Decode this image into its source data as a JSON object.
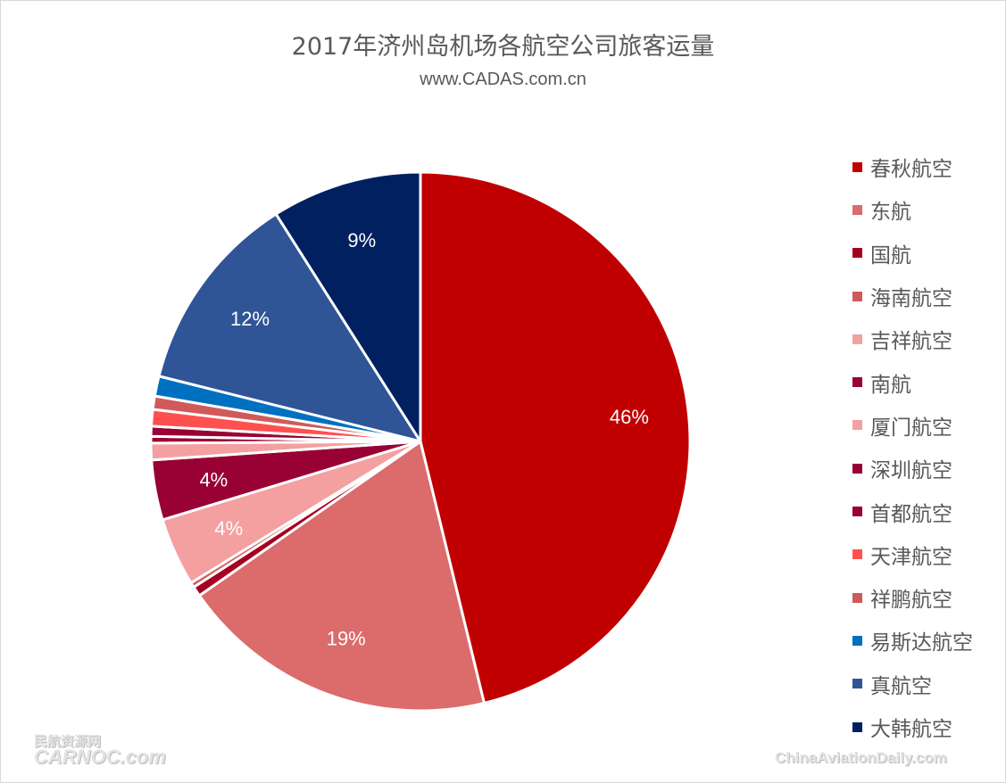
{
  "chart_data": {
    "type": "pie",
    "title": "2017年济州岛机场各航空公司旅客运量",
    "subtitle": "www.CADAS.com.cn",
    "legend_position": "right",
    "start_angle": "12 o'clock, clockwise",
    "slices": [
      {
        "name": "春秋航空",
        "value": 46.2,
        "label": "46%",
        "color": "#C00000"
      },
      {
        "name": "东航",
        "value": 19.1,
        "label": "19%",
        "color": "#DC6B6B"
      },
      {
        "name": "国航",
        "value": 0.6,
        "label": "",
        "color": "#A50021"
      },
      {
        "name": "海南航空",
        "value": 0.3,
        "label": "",
        "color": "#D05A5A"
      },
      {
        "name": "吉祥航空",
        "value": 4.1,
        "label": "4%",
        "color": "#F4A0A0"
      },
      {
        "name": "南航",
        "value": 3.6,
        "label": "4%",
        "color": "#990033"
      },
      {
        "name": "厦门航空",
        "value": 1.0,
        "label": "",
        "color": "#F4A0A0"
      },
      {
        "name": "深圳航空",
        "value": 0.4,
        "label": "",
        "color": "#990033"
      },
      {
        "name": "首都航空",
        "value": 0.6,
        "label": "",
        "color": "#990033"
      },
      {
        "name": "天津航空",
        "value": 1.0,
        "label": "",
        "color": "#FF5050"
      },
      {
        "name": "祥鹏航空",
        "value": 0.8,
        "label": "",
        "color": "#D05A5A"
      },
      {
        "name": "易斯达航空",
        "value": 1.2,
        "label": "",
        "color": "#0070C0"
      },
      {
        "name": "真航空",
        "value": 12.1,
        "label": "12%",
        "color": "#2F5597"
      },
      {
        "name": "大韩航空",
        "value": 9.0,
        "label": "9%",
        "color": "#002060"
      }
    ]
  },
  "watermarks": {
    "left_cn": "民航资源网",
    "left_en": "CARNOC.com",
    "right": "ChinaAviationDaily.com"
  }
}
